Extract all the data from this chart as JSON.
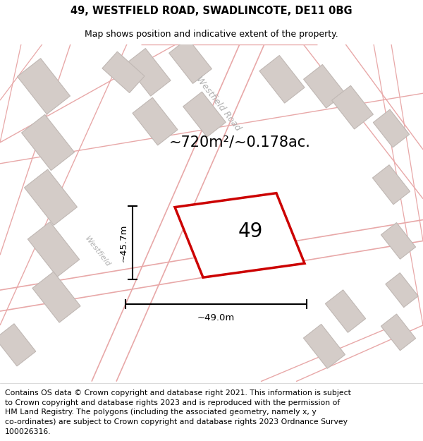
{
  "title": "49, WESTFIELD ROAD, SWADLINCOTE, DE11 0BG",
  "subtitle": "Map shows position and indicative extent of the property.",
  "area_label": "~720m²/~0.178ac.",
  "property_number": "49",
  "dim_width": "~49.0m",
  "dim_height": "~45.7m",
  "footer_lines": [
    "Contains OS data © Crown copyright and database right 2021. This information is subject",
    "to Crown copyright and database rights 2023 and is reproduced with the permission of",
    "HM Land Registry. The polygons (including the associated geometry, namely x, y",
    "co-ordinates) are subject to Crown copyright and database rights 2023 Ordnance Survey",
    "100026316."
  ],
  "map_bg": "#ffffff",
  "road_line_color": "#e8a8a8",
  "building_fill": "#d4ccc8",
  "building_edge": "#c0b8b4",
  "property_color": "#cc0000",
  "property_fill": "#ffffff",
  "title_fontsize": 10.5,
  "subtitle_fontsize": 9,
  "area_fontsize": 15,
  "number_fontsize": 20,
  "footer_fontsize": 7.8,
  "road_label_color": "#b0b0b0",
  "road_label_fontsize": 9
}
